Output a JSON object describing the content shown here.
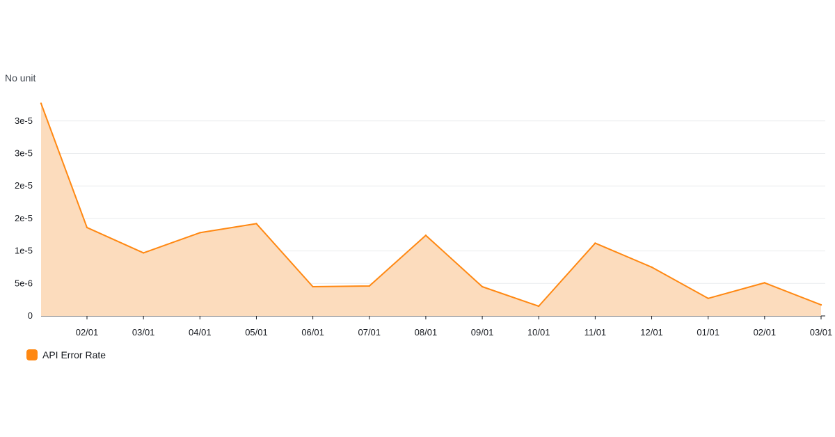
{
  "chart_data": {
    "type": "area",
    "ylabel": "No unit",
    "ylim": [
      0,
      3.3e-05
    ],
    "y_ticks": [
      {
        "value": 0,
        "label": "0"
      },
      {
        "value": 5e-06,
        "label": "5e-6"
      },
      {
        "value": 1e-05,
        "label": "1e-5"
      },
      {
        "value": 1.5e-05,
        "label": "2e-5"
      },
      {
        "value": 2e-05,
        "label": "2e-5"
      },
      {
        "value": 2.5e-05,
        "label": "3e-5"
      },
      {
        "value": 3e-05,
        "label": "3e-5"
      }
    ],
    "x_ticks": [
      "02/01",
      "03/01",
      "04/01",
      "05/01",
      "06/01",
      "07/01",
      "08/01",
      "09/01",
      "10/01",
      "11/01",
      "12/01",
      "01/01",
      "02/01",
      "03/01"
    ],
    "grid": true,
    "legend_position": "bottom-left",
    "series": [
      {
        "name": "API Error Rate",
        "color": "#ff8812",
        "fill": "#fcdcbd",
        "points": [
          {
            "t": 0.0,
            "y": 3.27e-05
          },
          {
            "t": 1.0,
            "y": 1.36e-05
          },
          {
            "t": 2.0,
            "y": 9.7e-06
          },
          {
            "t": 3.0,
            "y": 1.28e-05
          },
          {
            "t": 4.0,
            "y": 1.42e-05
          },
          {
            "t": 5.0,
            "y": 4.5e-06
          },
          {
            "t": 6.0,
            "y": 4.6e-06
          },
          {
            "t": 7.0,
            "y": 1.24e-05
          },
          {
            "t": 8.0,
            "y": 4.5e-06
          },
          {
            "t": 9.0,
            "y": 1.5e-06
          },
          {
            "t": 10.0,
            "y": 1.12e-05
          },
          {
            "t": 11.0,
            "y": 7.5e-06
          },
          {
            "t": 12.0,
            "y": 2.7e-06
          },
          {
            "t": 13.0,
            "y": 5.1e-06
          },
          {
            "t": 14.0,
            "y": 1.7e-06
          }
        ]
      }
    ]
  },
  "legend": {
    "label": "API Error Rate",
    "color": "#ff8812"
  }
}
